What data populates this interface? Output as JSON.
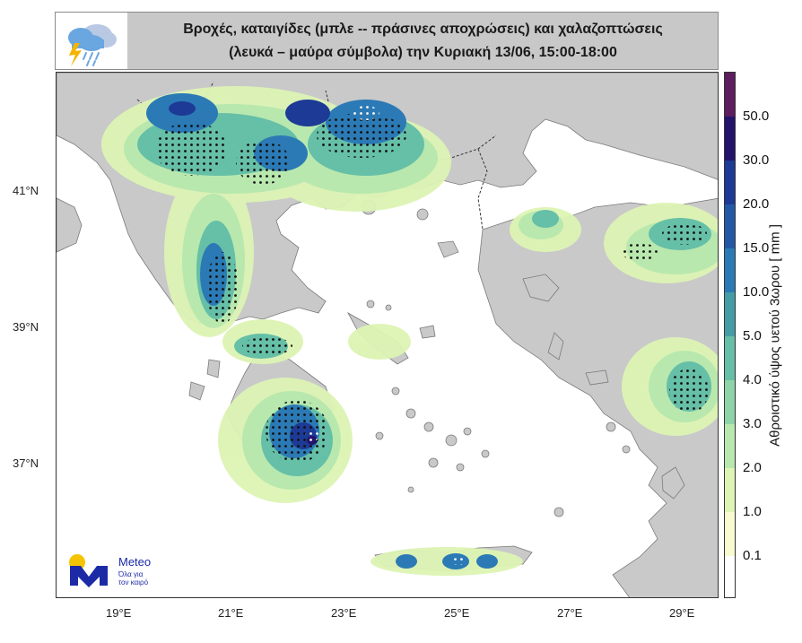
{
  "header": {
    "title_line1": "Βροχές, καταιγίδες (μπλε -- πράσινες αποχρώσεις) και χαλαζοπτώσεις",
    "title_line2": "(λευκά – μαύρα σύμβολα) την Κυριακή 13/06, 15:00-18:00",
    "icon": "rain-lightning-cloud-icon"
  },
  "map": {
    "lon_ticks": [
      "19°E",
      "21°E",
      "23°E",
      "25°E",
      "27°E",
      "29°E"
    ],
    "lat_ticks": [
      "41°N",
      "39°N",
      "37°N"
    ]
  },
  "colorbar": {
    "title": "Αθροιστικό ύψος υετού 3ωρου [ mm ]",
    "labels": [
      "50.0",
      "30.0",
      "20.0",
      "15.0",
      "10.0",
      "5.0",
      "4.0",
      "3.0",
      "2.0",
      "1.0",
      "0.1"
    ],
    "colors": {
      "c0": "#ffffff",
      "c01": "#f8fbcf",
      "c1": "#ddf4b4",
      "c2": "#b8e8ae",
      "c3": "#8fd3a8",
      "c4": "#66bfa7",
      "c5": "#449da6",
      "c10": "#2b7ab5",
      "c15": "#2358a6",
      "c20": "#1d3a96",
      "c30": "#24136b",
      "c50": "#5e1d5e"
    }
  },
  "logo": {
    "name": "Meteo",
    "tagline_line1": "Όλα για",
    "tagline_line2": "τον καιρό"
  }
}
